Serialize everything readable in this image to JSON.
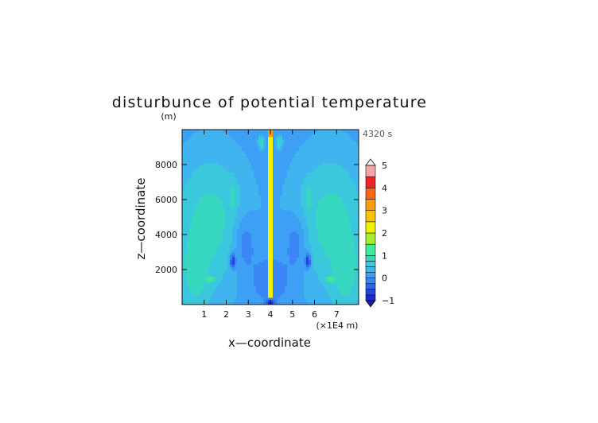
{
  "chart_data": {
    "type": "heatmap",
    "title": "disturbunce of potential temperature",
    "time_label": "4320 s",
    "y_unit_label": "(m)",
    "xlabel": "x—coordinate",
    "ylabel": "z—coordinate",
    "x_unit_label": "(×1E4 m)",
    "xlim": [
      0,
      8
    ],
    "ylim": [
      0,
      10000
    ],
    "x_ticks": [
      1,
      2,
      3,
      4,
      5,
      6,
      7
    ],
    "x_tick_labels": [
      "1",
      "2",
      "3",
      "4",
      "5",
      "6",
      "7"
    ],
    "y_ticks": [
      2000,
      4000,
      6000,
      8000
    ],
    "y_tick_labels": [
      "2000",
      "4000",
      "6000",
      "8000"
    ],
    "colorbar": {
      "min": -1,
      "max": 5,
      "tick_values": [
        -1,
        0,
        1,
        2,
        3,
        4,
        5
      ],
      "tick_labels": [
        "−1",
        "0",
        "1",
        "2",
        "3",
        "4",
        "5"
      ],
      "levels": [
        {
          "from": -1.0,
          "to": -0.75,
          "color": "#1a28d4"
        },
        {
          "from": -0.75,
          "to": -0.5,
          "color": "#2344e6"
        },
        {
          "from": -0.5,
          "to": -0.25,
          "color": "#2e66f0"
        },
        {
          "from": -0.25,
          "to": 0.0,
          "color": "#3a86f4"
        },
        {
          "from": 0.0,
          "to": 0.25,
          "color": "#3ea0f4"
        },
        {
          "from": 0.25,
          "to": 0.5,
          "color": "#40b4ee"
        },
        {
          "from": 0.5,
          "to": 0.75,
          "color": "#3cc8dc"
        },
        {
          "from": 0.75,
          "to": 1.0,
          "color": "#38d8c0"
        },
        {
          "from": 1.0,
          "to": 1.5,
          "color": "#44e89c"
        },
        {
          "from": 1.5,
          "to": 2.0,
          "color": "#a8ee2e"
        },
        {
          "from": 2.0,
          "to": 2.5,
          "color": "#f2f200"
        },
        {
          "from": 2.5,
          "to": 3.0,
          "color": "#f8c400"
        },
        {
          "from": 3.0,
          "to": 3.5,
          "color": "#f89c0a"
        },
        {
          "from": 3.5,
          "to": 4.0,
          "color": "#f86614"
        },
        {
          "from": 4.0,
          "to": 4.5,
          "color": "#f02222"
        },
        {
          "from": 4.5,
          "to": 5.0,
          "color": "#f4a6a6"
        }
      ]
    },
    "features": [
      {
        "kind": "background",
        "value": 0.1
      },
      {
        "kind": "ellipse",
        "x": 1.3,
        "z": 4800,
        "rx": 2.6,
        "rz": 6200,
        "value": 0.85
      },
      {
        "kind": "ellipse",
        "x": 6.7,
        "z": 4800,
        "rx": 2.6,
        "rz": 6200,
        "value": 0.85
      },
      {
        "kind": "ellipse",
        "x": 0.6,
        "z": 2000,
        "rx": 1.1,
        "rz": 4000,
        "value": 0.9
      },
      {
        "kind": "ellipse",
        "x": 7.4,
        "z": 2000,
        "rx": 1.1,
        "rz": 4000,
        "value": 0.9
      },
      {
        "kind": "ellipse",
        "x": 2.9,
        "z": 3400,
        "rx": 0.75,
        "rz": 2600,
        "value": -0.1
      },
      {
        "kind": "ellipse",
        "x": 5.1,
        "z": 3400,
        "rx": 0.75,
        "rz": 2600,
        "value": -0.1
      },
      {
        "kind": "ellipse",
        "x": 4.0,
        "z": 1500,
        "rx": 1.3,
        "rz": 2000,
        "value": -0.2
      },
      {
        "kind": "ellipse",
        "x": 2.3,
        "z": 6200,
        "rx": 0.28,
        "rz": 1400,
        "value": 0.85
      },
      {
        "kind": "ellipse",
        "x": 5.7,
        "z": 6200,
        "rx": 0.28,
        "rz": 1400,
        "value": 0.85
      },
      {
        "kind": "ellipse",
        "x": 2.3,
        "z": 2500,
        "rx": 0.2,
        "rz": 600,
        "value": -0.7
      },
      {
        "kind": "ellipse",
        "x": 5.7,
        "z": 2500,
        "rx": 0.2,
        "rz": 600,
        "value": -0.7
      },
      {
        "kind": "ellipse",
        "x": 1.3,
        "z": 1450,
        "rx": 0.25,
        "rz": 200,
        "value": 1.6
      },
      {
        "kind": "ellipse",
        "x": 6.7,
        "z": 1450,
        "rx": 0.25,
        "rz": 200,
        "value": 1.6
      },
      {
        "kind": "ellipse",
        "x": 4.0,
        "z": 100,
        "rx": 0.25,
        "rz": 250,
        "value": -1.0
      },
      {
        "kind": "ellipse",
        "x": 3.6,
        "z": 9300,
        "rx": 0.2,
        "rz": 500,
        "value": 1.0
      },
      {
        "kind": "ellipse",
        "x": 4.4,
        "z": 9300,
        "rx": 0.2,
        "rz": 500,
        "value": 1.0
      },
      {
        "kind": "column",
        "x": 4.0,
        "half_width": 0.12,
        "z_from": 400,
        "z_to": 9600,
        "value": 2.1
      },
      {
        "kind": "column",
        "x": 4.0,
        "half_width": 0.12,
        "z_from": 9600,
        "z_to": 10000,
        "value": 3.2
      }
    ]
  }
}
